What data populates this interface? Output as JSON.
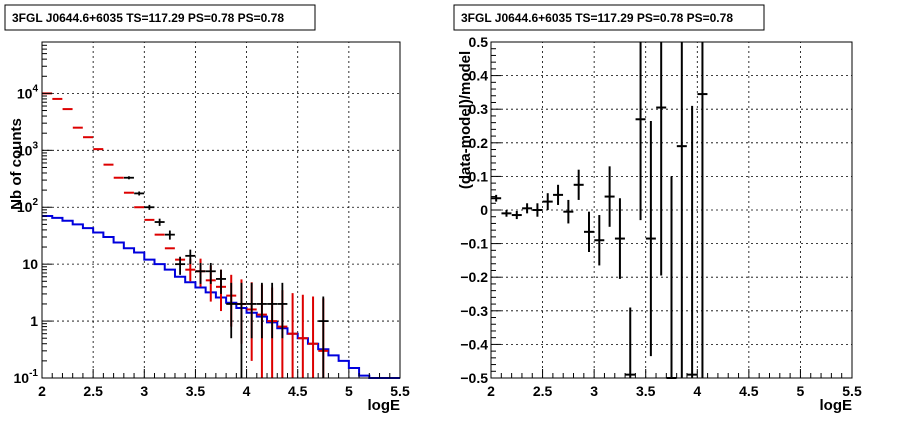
{
  "chart_data": [
    {
      "type": "histogram",
      "title": "3FGL J0644.6+6035 TS=117.29 PS=0.78 PS=0.78",
      "xlabel": "logE",
      "ylabel": "Nb of counts",
      "xlim": [
        2,
        5.5
      ],
      "ylim": [
        0.1,
        80000
      ],
      "yscale": "log",
      "grid": true,
      "x_ticks": [
        "2",
        "2.5",
        "3",
        "3.5",
        "4",
        "4.5",
        "5",
        "5.5"
      ],
      "y_ticks": [
        "10^-1",
        "1",
        "10",
        "10^2",
        "10^3",
        "10^4"
      ],
      "series": [
        {
          "color": "#dd0000",
          "style": "points-with-errors",
          "x": [
            2.05,
            2.15,
            2.25,
            2.35,
            2.45,
            2.55,
            2.65,
            2.75,
            2.85,
            2.95,
            3.05,
            3.15,
            3.25,
            3.35,
            3.45,
            3.55,
            3.65,
            3.75,
            3.85,
            3.95,
            4.05,
            4.15,
            4.25,
            4.35,
            4.45,
            4.55,
            4.65,
            4.75
          ],
          "values": [
            10000,
            8000,
            5300,
            2500,
            1700,
            1050,
            560,
            330,
            180,
            100,
            60,
            33,
            19,
            12,
            8,
            7.5,
            5.2,
            4,
            2.8,
            2,
            1.6,
            1.3,
            1,
            0.8,
            0.6,
            0.5,
            0.4,
            0.3
          ],
          "err_low": [
            0,
            0,
            0,
            0,
            0,
            0,
            0,
            0,
            0,
            0,
            0,
            0,
            0,
            0,
            3,
            3.5,
            3,
            2.5,
            2,
            1.6,
            1.4,
            1.2,
            0.9,
            0.72,
            0.54,
            0.45,
            0.36,
            0.27
          ],
          "err_high": [
            0,
            0,
            0,
            0,
            0,
            0,
            0,
            0,
            0,
            0,
            0,
            0,
            0,
            0,
            4.5,
            5,
            4.3,
            4,
            3.7,
            3.4,
            3.2,
            3.1,
            2.9,
            2.7,
            2.5,
            2.4,
            2.3,
            2.2
          ]
        },
        {
          "color": "#000000",
          "style": "points-with-errors",
          "x": [
            2.85,
            2.95,
            3.05,
            3.15,
            3.25,
            3.35,
            3.45,
            3.55,
            3.65,
            3.75,
            3.85,
            3.95,
            4.05,
            4.15,
            4.25,
            4.35,
            4.75
          ],
          "values": [
            330,
            175,
            100,
            55,
            33,
            10,
            14,
            7.5,
            7.5,
            5.5,
            2,
            2,
            2,
            2,
            2,
            2,
            1
          ],
          "err_low": [
            20,
            14,
            10,
            8,
            6,
            3.5,
            4,
            3,
            3,
            2.5,
            1.5,
            1.9,
            1.5,
            1.5,
            1.5,
            1.5,
            0.9
          ],
          "err_high": [
            20,
            14,
            10,
            8,
            6,
            3.5,
            4,
            3,
            3,
            2.5,
            2.7,
            2.7,
            2.7,
            2.7,
            2.7,
            2.7,
            1.7
          ]
        },
        {
          "color": "#0000dd",
          "style": "step",
          "x_edges": [
            2.0,
            2.1,
            2.2,
            2.3,
            2.4,
            2.5,
            2.6,
            2.7,
            2.8,
            2.9,
            3.0,
            3.1,
            3.2,
            3.3,
            3.4,
            3.5,
            3.6,
            3.7,
            3.8,
            3.9,
            4.0,
            4.1,
            4.2,
            4.3,
            4.4,
            4.5,
            4.6,
            4.7,
            4.8,
            4.9,
            5.0,
            5.1,
            5.2,
            5.3,
            5.4,
            5.5
          ],
          "values": [
            70,
            65,
            58,
            50,
            43,
            36,
            30,
            24,
            19,
            16,
            12,
            10,
            8,
            6,
            4.8,
            3.9,
            3.2,
            2.6,
            2.1,
            1.7,
            1.4,
            1.2,
            0.95,
            0.75,
            0.6,
            0.5,
            0.4,
            0.32,
            0.25,
            0.2,
            0.15,
            0.11,
            0.1,
            0.1,
            0.1
          ]
        }
      ]
    },
    {
      "type": "scatter",
      "title": "3FGL J0644.6+6035 TS=117.29 PS=0.78 PS=0.78",
      "xlabel": "logE",
      "ylabel": "(data-model)/model",
      "xlim": [
        2,
        5.5
      ],
      "ylim": [
        -0.5,
        0.5
      ],
      "grid": true,
      "x_ticks": [
        "2",
        "2.5",
        "3",
        "3.5",
        "4",
        "4.5",
        "5",
        "5.5"
      ],
      "y_ticks": [
        "−0.5",
        "−0.4",
        "−0.3",
        "−0.2",
        "−0.1",
        "0",
        "0.1",
        "0.2",
        "0.3",
        "0.4",
        "0.5"
      ],
      "series": [
        {
          "color": "#000000",
          "x": [
            2.05,
            2.15,
            2.25,
            2.35,
            2.45,
            2.55,
            2.65,
            2.75,
            2.85,
            2.95,
            3.05,
            3.15,
            3.25,
            3.35,
            3.45,
            3.55,
            3.65,
            3.75,
            3.85,
            3.95,
            4.05
          ],
          "values": [
            0.035,
            -0.01,
            -0.015,
            0.005,
            0.0,
            0.025,
            0.045,
            -0.005,
            0.075,
            -0.065,
            -0.09,
            0.04,
            -0.085,
            -0.49,
            0.27,
            -0.085,
            0.305,
            -0.5,
            0.19,
            -0.49,
            0.345
          ],
          "err": [
            0.01,
            0.01,
            0.012,
            0.015,
            0.02,
            0.025,
            0.03,
            0.035,
            0.045,
            0.06,
            0.075,
            0.09,
            0.12,
            0.2,
            0.3,
            0.35,
            0.5,
            0.6,
            0.7,
            0.8,
            0.9
          ]
        }
      ]
    }
  ]
}
